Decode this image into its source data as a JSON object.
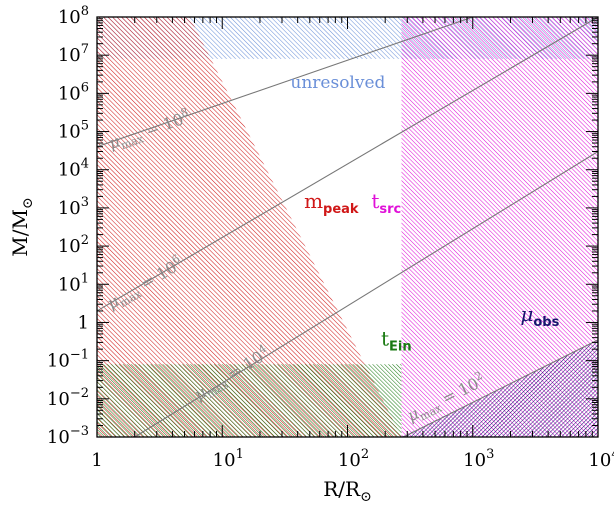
{
  "chart_data": {
    "type": "area",
    "xlabel": {
      "base": "R/R",
      "sub": "⊙"
    },
    "ylabel": {
      "base": "M/M",
      "sub": "⊙"
    },
    "xscale": "log",
    "yscale": "log",
    "xlim": [
      1,
      10000
    ],
    "ylim": [
      0.001,
      100000000
    ],
    "x_ticks": [
      {
        "v": 1,
        "base": "1",
        "exp": ""
      },
      {
        "v": 10,
        "base": "10",
        "exp": "1"
      },
      {
        "v": 100,
        "base": "10",
        "exp": "2"
      },
      {
        "v": 1000,
        "base": "10",
        "exp": "3"
      },
      {
        "v": 10000,
        "base": "10",
        "exp": "4"
      }
    ],
    "y_ticks": [
      {
        "v": 0.001,
        "base": "10",
        "exp": "−3"
      },
      {
        "v": 0.01,
        "base": "10",
        "exp": "−2"
      },
      {
        "v": 0.1,
        "base": "10",
        "exp": "−1"
      },
      {
        "v": 1,
        "base": "1",
        "exp": ""
      },
      {
        "v": 10,
        "base": "10",
        "exp": "1"
      },
      {
        "v": 100,
        "base": "10",
        "exp": "2"
      },
      {
        "v": 1000,
        "base": "10",
        "exp": "3"
      },
      {
        "v": 10000,
        "base": "10",
        "exp": "4"
      },
      {
        "v": 100000,
        "base": "10",
        "exp": "5"
      },
      {
        "v": 1000000,
        "base": "10",
        "exp": "6"
      },
      {
        "v": 10000000,
        "base": "10",
        "exp": "7"
      },
      {
        "v": 100000000,
        "base": "10",
        "exp": "8"
      }
    ],
    "regions": [
      {
        "id": "unresolved",
        "label": "unresolved",
        "color": "#6a8fd8",
        "polygon": [
          [
            1,
            8000000
          ],
          [
            10000,
            8000000
          ],
          [
            10000,
            100000000
          ],
          [
            1,
            100000000
          ]
        ],
        "label_at": [
          35,
          1400000
        ]
      },
      {
        "id": "m_peak",
        "label": "m",
        "label_sub": "peak",
        "color": "#d01818",
        "polygon": [
          [
            1,
            0.001
          ],
          [
            270,
            0.001
          ],
          [
            5.5,
            100000000
          ],
          [
            1,
            100000000
          ]
        ],
        "label_at": [
          45,
          1000
        ]
      },
      {
        "id": "t_src",
        "label": "t",
        "label_sub": "src",
        "color": "#e010d8",
        "polygon": [
          [
            270,
            0.001
          ],
          [
            10000,
            0.001
          ],
          [
            10000,
            100000000
          ],
          [
            270,
            100000000
          ]
        ],
        "label_at": [
          155,
          1000
        ]
      },
      {
        "id": "t_Ein",
        "label": "t",
        "label_sub": "Ein",
        "color": "#1a7a12",
        "polygon": [
          [
            1,
            0.001
          ],
          [
            270,
            0.001
          ],
          [
            270,
            0.08
          ],
          [
            1,
            0.08
          ]
        ],
        "label_at": [
          185,
          0.25
        ]
      },
      {
        "id": "mu_obs",
        "label": "μ",
        "label_sub": "obs",
        "color": "#17146e",
        "polygon": [
          [
            270,
            0.001
          ],
          [
            10000,
            0.001
          ],
          [
            10000,
            0.35
          ]
        ],
        "label_at": [
          2400,
          1.1
        ]
      }
    ],
    "lines": [
      {
        "id": "mu-1e2",
        "label": "μ",
        "sub": "max",
        "value": "10",
        "exp": "2",
        "points": [
          [
            280,
            0.001
          ],
          [
            10000,
            0.35
          ]
        ],
        "label_at": [
          320,
          0.0025
        ]
      },
      {
        "id": "mu-1e4",
        "label": "μ",
        "sub": "max",
        "value": "10",
        "exp": "4",
        "points": [
          [
            2,
            0.001
          ],
          [
            10000,
            30000
          ]
        ],
        "label_at": [
          6.5,
          0.009
        ]
      },
      {
        "id": "mu-1e6",
        "label": "μ",
        "sub": "max",
        "value": "10",
        "exp": "6",
        "points": [
          [
            1,
            2
          ],
          [
            10000,
            100000000
          ]
        ],
        "label_at": [
          1.3,
          2.2
        ]
      },
      {
        "id": "mu-1e8",
        "label": "μ",
        "sub": "max",
        "value": "10",
        "exp": "8",
        "points": [
          [
            1,
            40000
          ],
          [
            1000,
            100000000
          ]
        ],
        "label_at": [
          1.3,
          35000
        ]
      }
    ]
  }
}
